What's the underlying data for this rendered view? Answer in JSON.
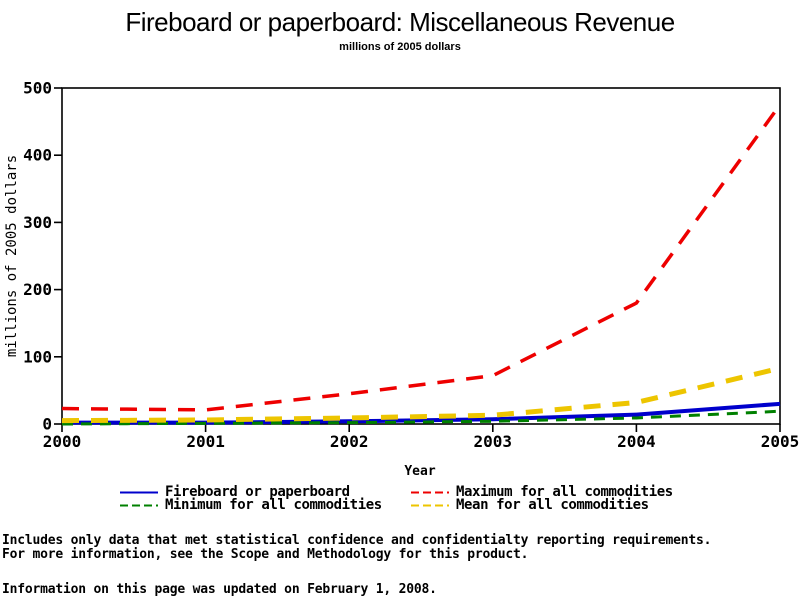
{
  "page": {
    "title": "Fireboard or paperboard: Miscellaneous Revenue",
    "subtitle": "millions of 2005 dollars"
  },
  "chart_data": {
    "type": "line",
    "title": "Fireboard or paperboard: Miscellaneous Revenue",
    "subtitle": "millions of 2005 dollars",
    "xlabel": "Year",
    "ylabel": "millions of 2005 dollars",
    "x": [
      2000,
      2001,
      2002,
      2003,
      2004,
      2005
    ],
    "xtick_labels": [
      "2000",
      "2001",
      "2002",
      "2003",
      "2004",
      "2005"
    ],
    "ylim": [
      0,
      500
    ],
    "yticks": [
      0,
      100,
      200,
      300,
      400,
      500
    ],
    "grid": false,
    "legend_position": "bottom",
    "series": [
      {
        "name": "Fireboard or paperboard",
        "color": "#0000CC",
        "style": "solid",
        "width": 4,
        "values": [
          2,
          2,
          4,
          7,
          14,
          30
        ]
      },
      {
        "name": "Minimum for all commodities",
        "color": "#008000",
        "style": "short-dash",
        "width": 3,
        "values": [
          0,
          1,
          2,
          4,
          9,
          19
        ]
      },
      {
        "name": "Mean for all commodities",
        "color": "#EDC500",
        "style": "long-dash",
        "width": 5,
        "values": [
          5,
          6,
          9,
          13,
          32,
          83
        ]
      },
      {
        "name": "Maximum for all commodities",
        "color": "#EE0000",
        "style": "long-dash",
        "width": 3.5,
        "values": [
          23,
          21,
          45,
          72,
          180,
          475
        ]
      }
    ]
  },
  "legend": {
    "items": [
      {
        "label": "Fireboard or paperboard",
        "color": "#0000CC",
        "dash": "solid"
      },
      {
        "label": "Maximum for all commodities",
        "color": "#EE0000",
        "dash": "dashed"
      },
      {
        "label": "Minimum for all commodities",
        "color": "#008000",
        "dash": "dashed"
      },
      {
        "label": "Mean for all commodities",
        "color": "#EDC500",
        "dash": "dashed"
      }
    ]
  },
  "footer": {
    "line1": "Includes only data that met statistical confidence and confidentialty reporting requirements.",
    "line2": "For more information, see the Scope and Methodology for this product.",
    "updated": "Information on this page was updated on February 1, 2008."
  }
}
